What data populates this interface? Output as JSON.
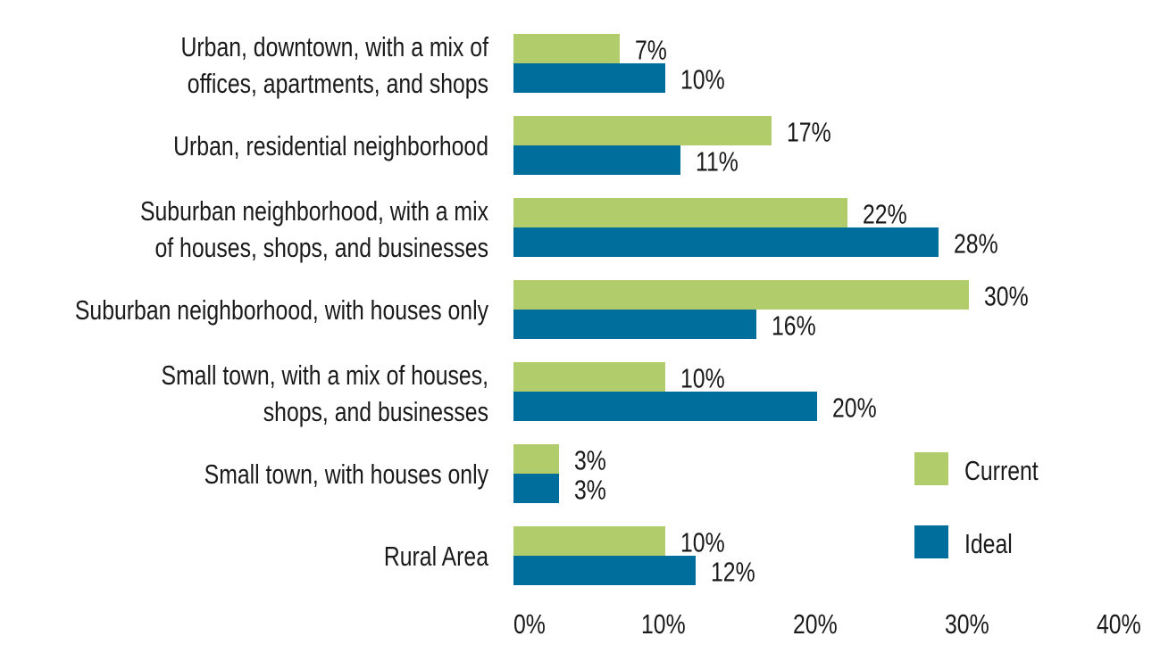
{
  "chart_data": {
    "type": "bar",
    "orientation": "horizontal",
    "title": "",
    "xlabel": "",
    "ylabel": "",
    "xlim": [
      0,
      40
    ],
    "x_ticks": [
      "0%",
      "10%",
      "20%",
      "30%",
      "40%"
    ],
    "grid": false,
    "legend_position": "bottom-right",
    "categories": [
      [
        "Urban, downtown, with a mix of",
        "offices, apartments, and shops"
      ],
      [
        "Urban, residential neighborhood"
      ],
      [
        "Suburban neighborhood, with a mix",
        "of houses, shops, and businesses"
      ],
      [
        "Suburban neighborhood, with houses only"
      ],
      [
        "Small town, with a mix of houses,",
        "shops, and businesses"
      ],
      [
        "Small town, with houses only"
      ],
      [
        "Rural Area"
      ]
    ],
    "series": [
      {
        "name": "Current",
        "color": "#b1cc6b",
        "values": [
          7,
          17,
          22,
          30,
          10,
          3,
          10
        ],
        "labels": [
          "7%",
          "17%",
          "22%",
          "30%",
          "10%",
          "3%",
          "10%"
        ]
      },
      {
        "name": "Ideal",
        "color": "#006e9c",
        "values": [
          10,
          11,
          28,
          16,
          20,
          3,
          12
        ],
        "labels": [
          "10%",
          "11%",
          "28%",
          "16%",
          "20%",
          "3%",
          "12%"
        ]
      }
    ]
  }
}
